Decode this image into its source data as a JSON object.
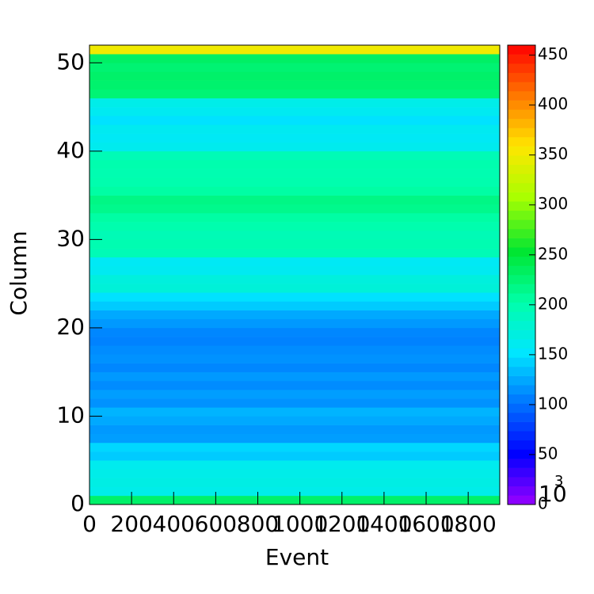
{
  "chart_data": {
    "type": "heatmap",
    "x_label": "Event",
    "y_label": "Column",
    "xlim": [
      0,
      1950
    ],
    "xticks": [
      0,
      200,
      400,
      600,
      800,
      1000,
      1200,
      1400,
      1600,
      1800
    ],
    "ylim": [
      0,
      52
    ],
    "yticks": [
      0,
      10,
      20,
      30,
      40,
      50
    ],
    "row_values": [
      230,
      165,
      168,
      165,
      162,
      140,
      145,
      120,
      118,
      125,
      130,
      115,
      120,
      112,
      118,
      110,
      115,
      112,
      108,
      110,
      118,
      125,
      140,
      150,
      175,
      172,
      160,
      158,
      195,
      198,
      195,
      200,
      205,
      215,
      218,
      205,
      200,
      198,
      200,
      195,
      162,
      158,
      160,
      150,
      160,
      165,
      225,
      228,
      230,
      226,
      232,
      350
    ],
    "zlim": [
      0,
      460
    ],
    "zticks": [
      0,
      50,
      100,
      150,
      200,
      250,
      300,
      350,
      400,
      450
    ],
    "z_exponent_base": "10",
    "z_exponent": "3"
  }
}
